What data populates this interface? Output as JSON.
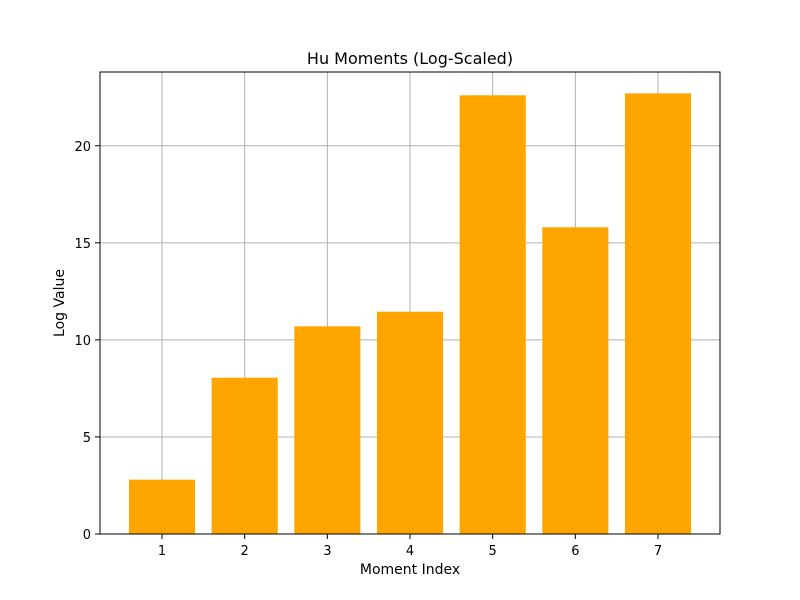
{
  "chart_data": {
    "type": "bar",
    "title": "Hu Moments (Log-Scaled)",
    "xlabel": "Moment Index",
    "ylabel": "Log Value",
    "categories": [
      "1",
      "2",
      "3",
      "4",
      "5",
      "6",
      "7"
    ],
    "values": [
      2.8,
      8.05,
      10.7,
      11.45,
      22.6,
      15.8,
      22.7
    ],
    "ylim": [
      0,
      23.8
    ],
    "yticks": [
      0,
      5,
      10,
      15,
      20
    ],
    "grid": true,
    "bar_color": "#ffa500"
  }
}
